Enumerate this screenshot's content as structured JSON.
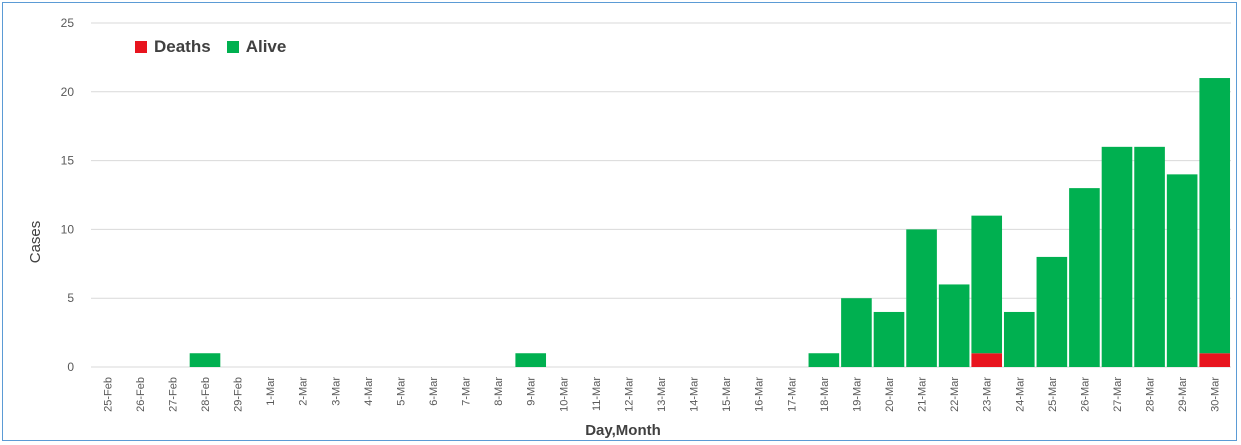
{
  "chart_data": {
    "type": "bar",
    "stacked": true,
    "xlabel": "Day,Month",
    "ylabel": "Cases",
    "ylim": [
      0,
      25
    ],
    "yticks": [
      0,
      5,
      10,
      15,
      20,
      25
    ],
    "grid": true,
    "legend_position": "top-left",
    "categories": [
      "25-Feb",
      "26-Feb",
      "27-Feb",
      "28-Feb",
      "29-Feb",
      "1-Mar",
      "2-Mar",
      "3-Mar",
      "4-Mar",
      "5-Mar",
      "6-Mar",
      "7-Mar",
      "8-Mar",
      "9-Mar",
      "10-Mar",
      "11-Mar",
      "12-Mar",
      "13-Mar",
      "14-Mar",
      "15-Mar",
      "16-Mar",
      "17-Mar",
      "18-Mar",
      "19-Mar",
      "20-Mar",
      "21-Mar",
      "22-Mar",
      "23-Mar",
      "24-Mar",
      "25-Mar",
      "26-Mar",
      "27-Mar",
      "28-Mar",
      "29-Mar",
      "30-Mar"
    ],
    "series": [
      {
        "name": "Deaths",
        "color": "#e8141e",
        "values": [
          0,
          0,
          0,
          0,
          0,
          0,
          0,
          0,
          0,
          0,
          0,
          0,
          0,
          0,
          0,
          0,
          0,
          0,
          0,
          0,
          0,
          0,
          0,
          0,
          0,
          0,
          0,
          1,
          0,
          0,
          0,
          0,
          0,
          0,
          1
        ]
      },
      {
        "name": "Alive",
        "color": "#00b050",
        "values": [
          0,
          0,
          0,
          1,
          0,
          0,
          0,
          0,
          0,
          0,
          0,
          0,
          0,
          1,
          0,
          0,
          0,
          0,
          0,
          0,
          0,
          0,
          1,
          5,
          4,
          10,
          6,
          10,
          4,
          8,
          13,
          16,
          16,
          14,
          20
        ]
      }
    ]
  }
}
